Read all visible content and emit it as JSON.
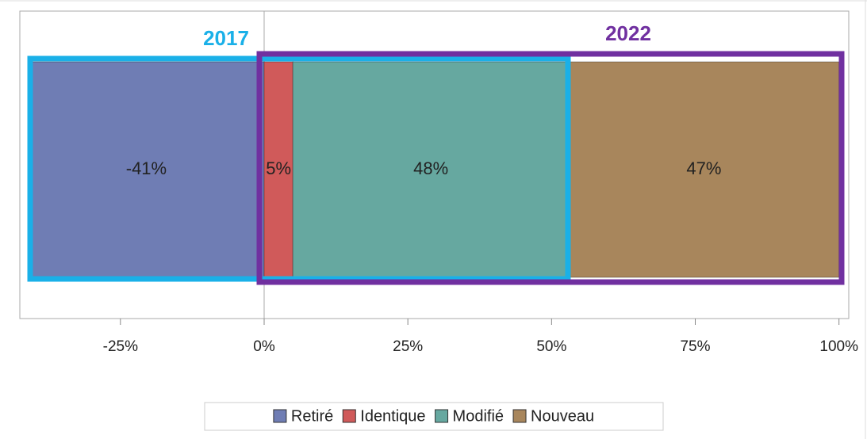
{
  "chart_data": {
    "type": "bar",
    "orientation": "horizontal",
    "stacked": true,
    "categories": [
      null
    ],
    "series": [
      {
        "name": "Retiré",
        "color": "#6f7db4",
        "values": [
          -41
        ],
        "value_labels": [
          "-41%"
        ]
      },
      {
        "name": "Identique",
        "color": "#d05a5a",
        "values": [
          5
        ],
        "value_labels": [
          "5%"
        ]
      },
      {
        "name": "Modifié",
        "color": "#66a8a0",
        "values": [
          48
        ],
        "value_labels": [
          "48%"
        ]
      },
      {
        "name": "Nouveau",
        "color": "#a8865c",
        "values": [
          47
        ],
        "value_labels": [
          "47%"
        ]
      }
    ],
    "xlim": [
      -42.5,
      101.7
    ],
    "xticks": [
      {
        "value": -25,
        "label": "-25%"
      },
      {
        "value": 0,
        "label": "0%"
      },
      {
        "value": 25,
        "label": "25%"
      },
      {
        "value": 50,
        "label": "50%"
      },
      {
        "value": 75,
        "label": "75%"
      },
      {
        "value": 100,
        "label": "100%"
      }
    ],
    "annotations": [
      {
        "text": "2017",
        "color": "#1ab0e8"
      },
      {
        "text": "2022",
        "color": "#7030a0"
      }
    ],
    "legend": "bottom"
  }
}
